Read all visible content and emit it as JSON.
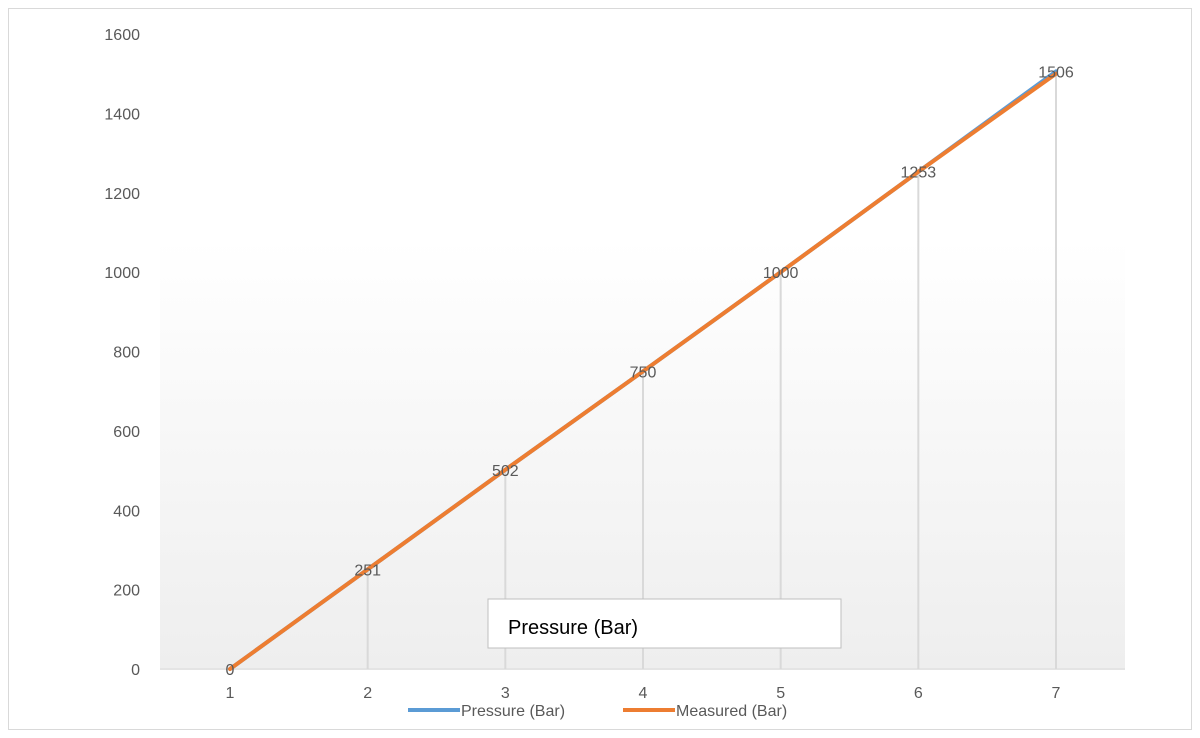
{
  "chart_data": {
    "type": "line",
    "title": "",
    "xlabel": "",
    "ylabel": "",
    "x": [
      1,
      2,
      3,
      4,
      5,
      6,
      7
    ],
    "ylim": [
      0,
      1600
    ],
    "yticks": [
      0,
      200,
      400,
      600,
      800,
      1000,
      1200,
      1400,
      1600
    ],
    "grid": "vertical drop lines",
    "legend": "bottom",
    "series": [
      {
        "name": "Pressure (Bar)",
        "color": "#5b9bd5",
        "values": [
          0,
          251,
          502,
          750,
          1000,
          1253,
          1506
        ]
      },
      {
        "name": "Measured (Bar)",
        "color": "#ed7d31",
        "values": [
          0,
          251,
          502,
          750,
          1000,
          1253,
          1500
        ]
      }
    ],
    "data_labels": [
      "0",
      "251",
      "502",
      "750",
      "1000",
      "1253",
      "1506"
    ],
    "annotation": "Pressure (Bar)"
  }
}
